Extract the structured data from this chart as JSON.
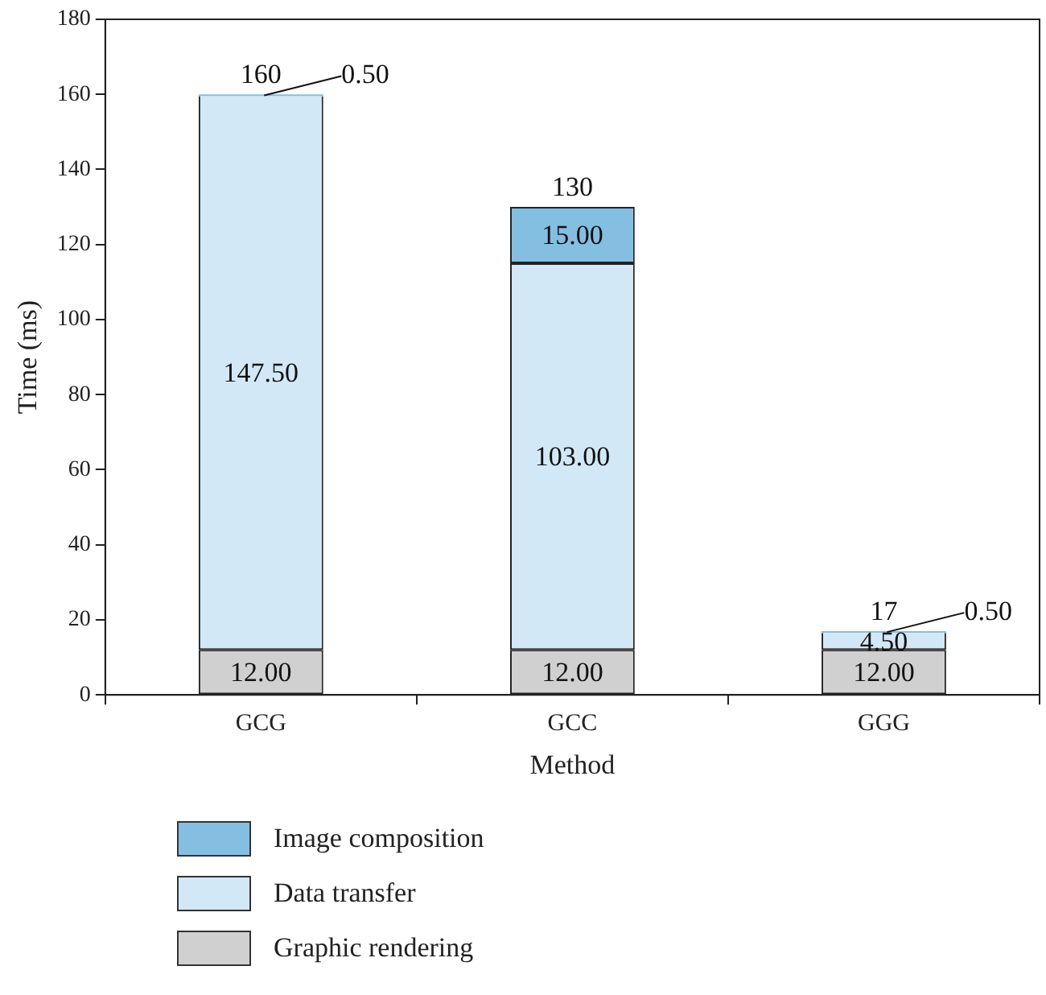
{
  "chart_data": {
    "type": "bar",
    "stacked": true,
    "xlabel": "Method",
    "ylabel": "Time (ms)",
    "categories": [
      "GCG",
      "GCC",
      "GGG"
    ],
    "series": [
      {
        "name": "Graphic rendering",
        "color": "#d0d0d0",
        "values": [
          12,
          12,
          12
        ],
        "value_labels": [
          "12.00",
          "12.00",
          "12.00"
        ]
      },
      {
        "name": "Data transfer",
        "color": "#d3e8f7",
        "values": [
          147.5,
          103,
          4.5
        ],
        "value_labels": [
          "147.50",
          "103.00",
          "4.50"
        ]
      },
      {
        "name": "Image composition",
        "color": "#84bfe2",
        "values": [
          0.5,
          15,
          0.5
        ],
        "value_labels": [
          "0.50",
          "15.00",
          "0.50"
        ]
      }
    ],
    "totals": [
      "160",
      "130",
      "17"
    ],
    "ylim": [
      0,
      180
    ],
    "yticks": [
      0,
      20,
      40,
      60,
      80,
      100,
      120,
      140,
      160,
      180
    ],
    "grid": false,
    "legend": "bottom"
  }
}
